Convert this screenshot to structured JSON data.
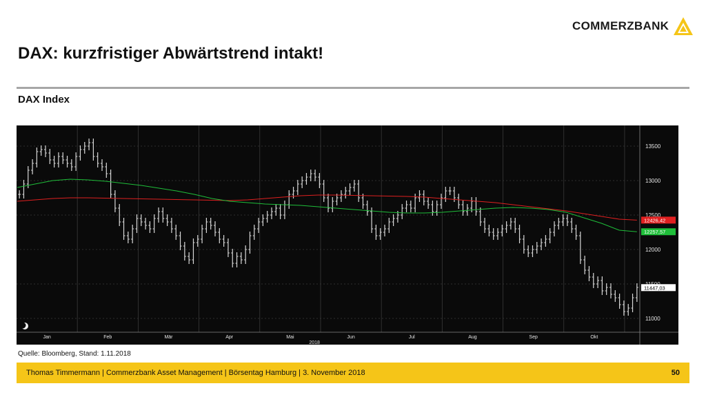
{
  "brand": {
    "name": "COMMERZBANK",
    "logo_color": "#f5c518"
  },
  "slide": {
    "title": "DAX: kurzfristiger Abwärtstrend intakt!",
    "subtitle": "DAX Index",
    "source": "Quelle: Bloomberg, Stand: 1.11.2018",
    "footer": "Thomas Timmermann | Commerzbank Asset Management | Börsentag Hamburg | 3. November 2018",
    "page_number": "50"
  },
  "chart_data": {
    "type": "ohlc",
    "title": "",
    "year_label": "2018",
    "months": [
      "Jan",
      "Feb",
      "Mär",
      "Apr",
      "Mai",
      "Jun",
      "Jul",
      "Aug",
      "Sep",
      "Okt"
    ],
    "x_range": [
      "2018-01-01",
      "2018-11-05"
    ],
    "y_range": [
      10800,
      13800
    ],
    "y_ticks": [
      11000,
      11500,
      12000,
      12500,
      13000,
      13500
    ],
    "grid": true,
    "background": "#0a0a0a",
    "series": [
      {
        "kind": "price",
        "color": "#d9d9d9",
        "close": [
          12800,
          12950,
          13150,
          13250,
          13420,
          13450,
          13400,
          13300,
          13250,
          13350,
          13300,
          13250,
          13200,
          13350,
          13450,
          13500,
          13550,
          13350,
          13250,
          13200,
          13100,
          12800,
          12600,
          12400,
          12200,
          12150,
          12300,
          12450,
          12400,
          12350,
          12300,
          12450,
          12550,
          12450,
          12400,
          12300,
          12200,
          12050,
          11900,
          11850,
          12100,
          12150,
          12300,
          12400,
          12350,
          12250,
          12150,
          12100,
          11950,
          11800,
          11900,
          11850,
          12000,
          12200,
          12300,
          12400,
          12450,
          12500,
          12550,
          12600,
          12500,
          12650,
          12800,
          12850,
          12950,
          13000,
          13050,
          13100,
          13050,
          12950,
          12750,
          12600,
          12700,
          12750,
          12800,
          12850,
          12900,
          12950,
          12750,
          12650,
          12550,
          12300,
          12200,
          12250,
          12300,
          12400,
          12450,
          12500,
          12600,
          12650,
          12600,
          12750,
          12800,
          12700,
          12650,
          12550,
          12650,
          12750,
          12850,
          12850,
          12750,
          12650,
          12550,
          12600,
          12700,
          12550,
          12400,
          12300,
          12250,
          12200,
          12250,
          12300,
          12350,
          12400,
          12300,
          12150,
          12000,
          11950,
          12000,
          12050,
          12100,
          12150,
          12250,
          12350,
          12400,
          12450,
          12400,
          12300,
          12200,
          11850,
          11700,
          11600,
          11500,
          11550,
          11400,
          11450,
          11350,
          11300,
          11200,
          11100,
          11150,
          11300,
          11450
        ]
      },
      {
        "kind": "moving-average",
        "label": "12257,57",
        "color": "#1fbf3a"
      },
      {
        "kind": "moving-average",
        "label": "12426,42",
        "color": "#e02020"
      }
    ],
    "ma_values": {
      "green": [
        12900,
        12950,
        13000,
        13020,
        13010,
        12990,
        12960,
        12930,
        12890,
        12850,
        12800,
        12740,
        12700,
        12680,
        12660,
        12650,
        12640,
        12620,
        12600,
        12580,
        12560,
        12540,
        12530,
        12530,
        12540,
        12560,
        12580,
        12600,
        12610,
        12600,
        12580,
        12540,
        12460,
        12380,
        12280,
        12257.57
      ],
      "red": [
        12700,
        12720,
        12740,
        12750,
        12750,
        12745,
        12740,
        12735,
        12730,
        12725,
        12720,
        12715,
        12710,
        12720,
        12740,
        12760,
        12780,
        12790,
        12790,
        12785,
        12780,
        12775,
        12770,
        12760,
        12740,
        12720,
        12700,
        12680,
        12650,
        12620,
        12590,
        12560,
        12520,
        12480,
        12440,
        12426.42
      ]
    },
    "value_labels": [
      {
        "text": "12426,42",
        "value": 12426.42,
        "bg": "#e02020"
      },
      {
        "text": "12257,57",
        "value": 12257.57,
        "bg": "#1fbf3a"
      },
      {
        "text": "11447,03",
        "value": 11447.03,
        "bg": "#ffffff"
      }
    ]
  }
}
